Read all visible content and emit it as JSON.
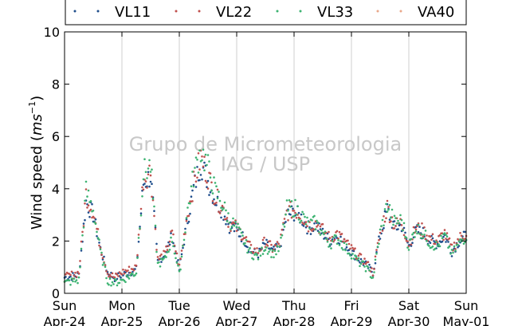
{
  "chart_data": {
    "type": "scatter",
    "title": "",
    "xlabel": "",
    "ylabel": "Wind speed (ms⁻¹)",
    "ylabel_parts": {
      "main": "Wind speed (",
      "unit": "ms",
      "exp": "−1",
      "close": ")"
    },
    "ylim": [
      0,
      10
    ],
    "yticks": [
      "0",
      "2",
      "4",
      "6",
      "8",
      "10"
    ],
    "xlim": [
      "2016-04-24",
      "2016-05-01"
    ],
    "xticks": [
      {
        "date": "2016-04-24",
        "day": "Sun",
        "label": "Apr-24"
      },
      {
        "date": "2016-04-25",
        "day": "Mon",
        "label": "Apr-25"
      },
      {
        "date": "2016-04-26",
        "day": "Tue",
        "label": "Apr-26"
      },
      {
        "date": "2016-04-27",
        "day": "Wed",
        "label": "Apr-27"
      },
      {
        "date": "2016-04-28",
        "day": "Thu",
        "label": "Apr-28"
      },
      {
        "date": "2016-04-29",
        "day": "Fri",
        "label": "Apr-29"
      },
      {
        "date": "2016-04-30",
        "day": "Sat",
        "label": "Apr-30"
      },
      {
        "date": "2016-05-01",
        "day": "Sun",
        "label": "May-01"
      }
    ],
    "grid": "vertical",
    "legend_position": "top",
    "watermark": [
      "Grupo de Micrometeorologia",
      "IAG / USP"
    ],
    "x_hours": [
      0,
      6,
      9,
      12,
      15,
      18,
      21,
      24,
      30,
      33,
      36,
      39,
      42,
      45,
      48,
      51,
      54,
      57,
      60,
      63,
      66,
      69,
      72,
      75,
      78,
      81,
      84,
      87,
      90,
      93,
      96,
      99,
      102,
      105,
      108,
      111,
      114,
      117,
      120,
      123,
      126,
      129,
      132,
      135,
      138,
      141,
      144,
      147,
      150,
      153,
      156,
      159,
      162,
      165,
      168
    ],
    "series": [
      {
        "name": "VL11",
        "color": "#1f4e8c",
        "values": [
          0.6,
          0.7,
          3.5,
          3.0,
          1.7,
          0.8,
          0.6,
          0.7,
          0.9,
          4.2,
          4.5,
          1.2,
          1.5,
          2.2,
          0.9,
          2.6,
          4.0,
          5.0,
          4.3,
          3.6,
          3.2,
          2.6,
          2.4,
          2.1,
          1.6,
          1.5,
          1.9,
          1.6,
          1.8,
          3.0,
          3.1,
          2.9,
          2.5,
          2.6,
          2.3,
          2.0,
          2.2,
          1.9,
          1.6,
          1.3,
          1.1,
          0.8,
          2.2,
          3.2,
          2.5,
          2.6,
          1.8,
          2.4,
          2.3,
          2.0,
          1.9,
          2.2,
          1.6,
          2.0,
          2.2
        ]
      },
      {
        "name": "VL22",
        "color": "#c0504d",
        "values": [
          0.6,
          0.8,
          3.8,
          3.1,
          1.8,
          0.8,
          0.6,
          0.8,
          1.0,
          4.4,
          4.7,
          1.3,
          1.5,
          2.3,
          1.0,
          2.8,
          4.2,
          5.2,
          4.5,
          3.7,
          3.3,
          2.7,
          2.5,
          2.2,
          1.7,
          1.6,
          2.0,
          1.7,
          1.9,
          3.1,
          3.2,
          3.0,
          2.6,
          2.7,
          2.4,
          2.1,
          2.3,
          2.0,
          1.7,
          1.4,
          1.2,
          0.8,
          2.3,
          3.3,
          2.6,
          2.7,
          1.9,
          2.5,
          2.4,
          2.1,
          2.0,
          2.3,
          1.7,
          2.1,
          2.3
        ]
      },
      {
        "name": "VL33",
        "color": "#3cb371",
        "values": [
          0.4,
          0.5,
          3.9,
          3.2,
          1.6,
          0.5,
          0.4,
          0.5,
          0.8,
          4.6,
          4.9,
          1.1,
          1.3,
          2.1,
          0.7,
          2.9,
          4.5,
          5.5,
          4.8,
          3.9,
          3.4,
          2.8,
          2.5,
          2.0,
          1.5,
          1.4,
          1.8,
          1.5,
          1.7,
          3.2,
          3.3,
          3.0,
          2.6,
          2.7,
          2.3,
          1.9,
          2.1,
          1.8,
          1.5,
          1.2,
          1.0,
          0.6,
          2.3,
          3.4,
          2.7,
          2.8,
          1.8,
          2.5,
          2.3,
          1.9,
          1.8,
          2.2,
          1.5,
          1.9,
          2.2
        ]
      },
      {
        "name": "VA40",
        "color": "#e9a88a",
        "values": []
      }
    ]
  }
}
